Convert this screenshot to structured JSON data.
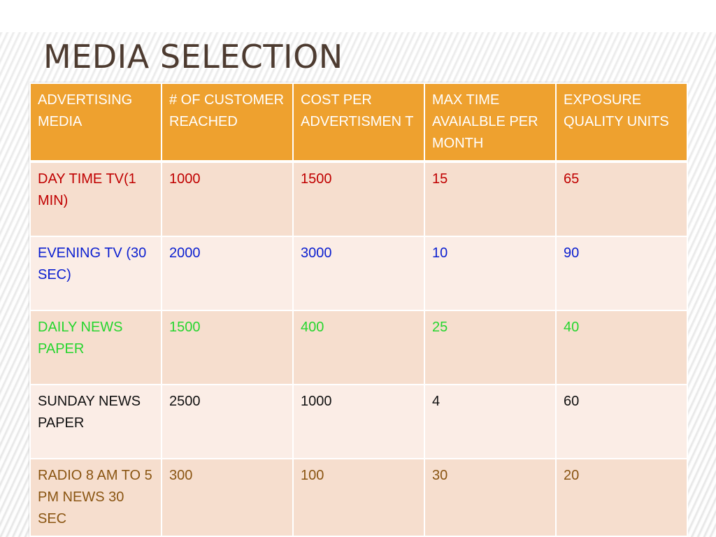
{
  "slide": {
    "title": "MEDIA SELECTION"
  },
  "colors": {
    "title": "#4d3b30",
    "header_background": "#eea12f",
    "header_text": "#ffffff",
    "row_odd_background": "#f6dece",
    "row_even_background": "#fbede6",
    "day_time_tv_text": "#c00000",
    "evening_tv_text": "#0a1ed0",
    "daily_news_paper_text": "#26d62e",
    "sunday_news_paper_text": "#111111",
    "radio_text": "#8a5512"
  },
  "table": {
    "headers": [
      "ADVERTISING MEDIA",
      "# OF CUSTOMER REACHED",
      "COST PER ADVERTISMEN T",
      "MAX TIME AVAIALBLE PER MONTH",
      "EXPOSURE QUALITY UNITS"
    ],
    "rows": [
      [
        "DAY TIME TV(1 MIN)",
        "1000",
        "1500",
        "15",
        "65"
      ],
      [
        "EVENING TV (30 SEC)",
        "2000",
        "3000",
        "10",
        "90"
      ],
      [
        "DAILY NEWS PAPER",
        "1500",
        "400",
        "25",
        "40"
      ],
      [
        "SUNDAY NEWS PAPER",
        "2500",
        "1000",
        "4",
        "60"
      ],
      [
        "RADIO 8 AM TO 5 PM NEWS 30 SEC",
        "300",
        "100",
        "30",
        "20"
      ]
    ]
  }
}
